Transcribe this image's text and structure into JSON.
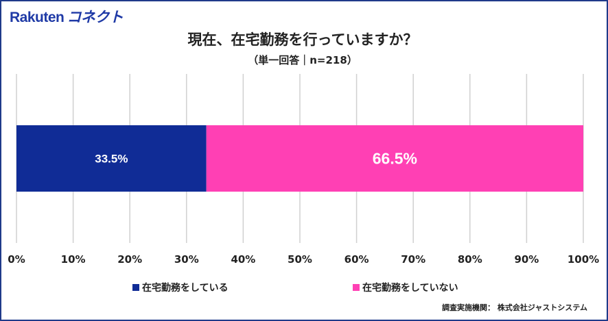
{
  "brand": {
    "logo_part1": "Rakuten",
    "logo_part2": "コネクト",
    "color": "#1f3aa6"
  },
  "header": {
    "title": "現在、在宅勤務を行っていますか？",
    "subtitle": "（単一回答｜n=218）"
  },
  "source": "調査実施機関： 株式会社ジャストシステム",
  "chart_data": {
    "type": "bar",
    "orientation": "horizontal-stacked-100",
    "title": "現在、在宅勤務を行っていますか？",
    "categories": [
      ""
    ],
    "xlim": [
      0,
      100
    ],
    "x_ticks": [
      "0%",
      "10%",
      "20%",
      "30%",
      "40%",
      "50%",
      "60%",
      "70%",
      "80%",
      "90%",
      "100%"
    ],
    "grid": true,
    "legend_position": "bottom",
    "series": [
      {
        "name": "在宅勤務をしている",
        "value": 33.5,
        "label": "33.5%",
        "color": "#102c96"
      },
      {
        "name": "在宅勤務をしていない",
        "value": 66.5,
        "label": "66.5%",
        "color": "#ff40b4"
      }
    ]
  }
}
